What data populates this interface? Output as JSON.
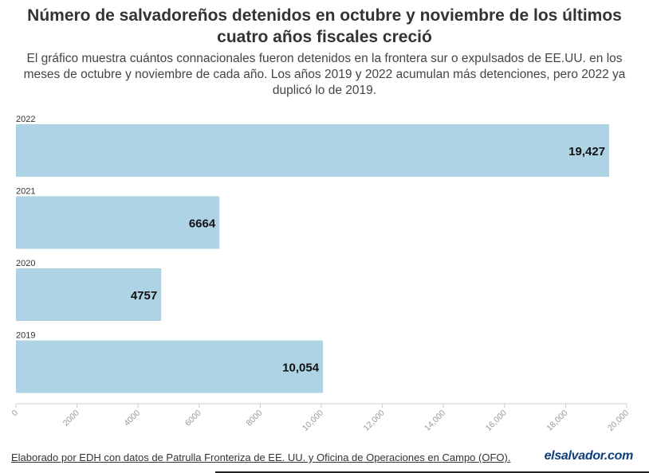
{
  "title": "Número de salvadoreños detenidos en octubre y noviembre de los últimos cuatro años fiscales creció",
  "subtitle": "El gráfico muestra cuántos connacionales fueron detenidos en la frontera sur o expulsados de EE.UU. en los meses de octubre y noviembre de cada año. Los años 2019 y 2022 acumulan más detenciones, pero 2022 ya duplicó lo de 2019.",
  "footer": "Elaborado por EDH con datos de Patrulla Fronteriza de EE. UU. y Oficina de Operaciones en Campo (OFO).",
  "logo": "elsalvador.com",
  "colors": {
    "bar": "#aed3e5",
    "text": "#333333",
    "axis": "#cccccc",
    "tick_label": "#999999"
  },
  "chart_data": {
    "type": "bar",
    "orientation": "horizontal",
    "categories": [
      "2022",
      "2021",
      "2020",
      "2019"
    ],
    "values": [
      19427,
      6664,
      4757,
      10054
    ],
    "value_labels": [
      "19,427",
      "6664",
      "4757",
      "10,054"
    ],
    "xlim": [
      0,
      20000
    ],
    "x_ticks": [
      0,
      2000,
      4000,
      6000,
      8000,
      10000,
      12000,
      14000,
      16000,
      18000,
      20000
    ],
    "x_tick_labels": [
      "0",
      "2000",
      "4000",
      "6000",
      "8000",
      "10,000",
      "12,000",
      "14,000",
      "16,000",
      "18,000",
      "20,000"
    ],
    "grid": false,
    "legend": "none"
  }
}
